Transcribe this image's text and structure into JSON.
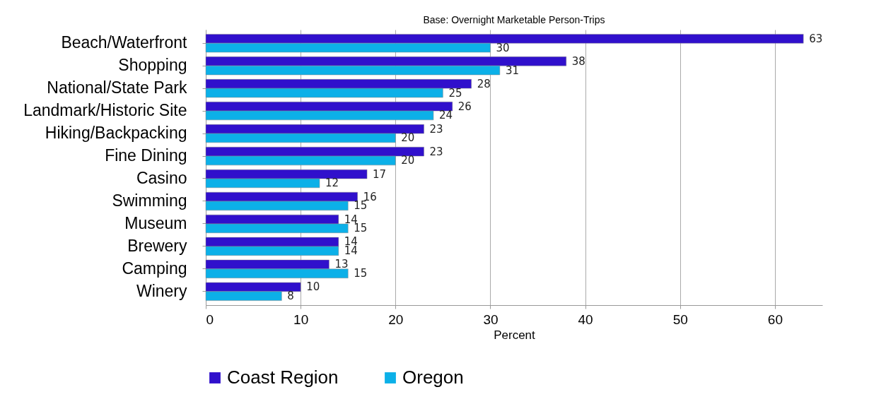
{
  "chart_data": {
    "type": "bar",
    "orientation": "horizontal",
    "title": "Base: Overnight Marketable Person-Trips",
    "xlabel": "Percent",
    "categories": [
      "Beach/Waterfront",
      "Shopping",
      "National/State Park",
      "Landmark/Historic Site",
      "Hiking/Backpacking",
      "Fine Dining",
      "Casino",
      "Swimming",
      "Museum",
      "Brewery",
      "Camping",
      "Winery"
    ],
    "series": [
      {
        "name": "Coast Region",
        "color": "#3010cc",
        "values": [
          63,
          38,
          28,
          26,
          23,
          23,
          17,
          16,
          14,
          14,
          13,
          10
        ]
      },
      {
        "name": "Oregon",
        "color": "#0cb0e8",
        "values": [
          30,
          31,
          25,
          24,
          20,
          20,
          12,
          15,
          15,
          14,
          15,
          8
        ]
      }
    ],
    "xlim": [
      0,
      65
    ],
    "xticks": [
      0,
      10,
      20,
      30,
      40,
      50,
      60
    ],
    "grid": "x",
    "legend": "bottom",
    "data_labels": true
  }
}
